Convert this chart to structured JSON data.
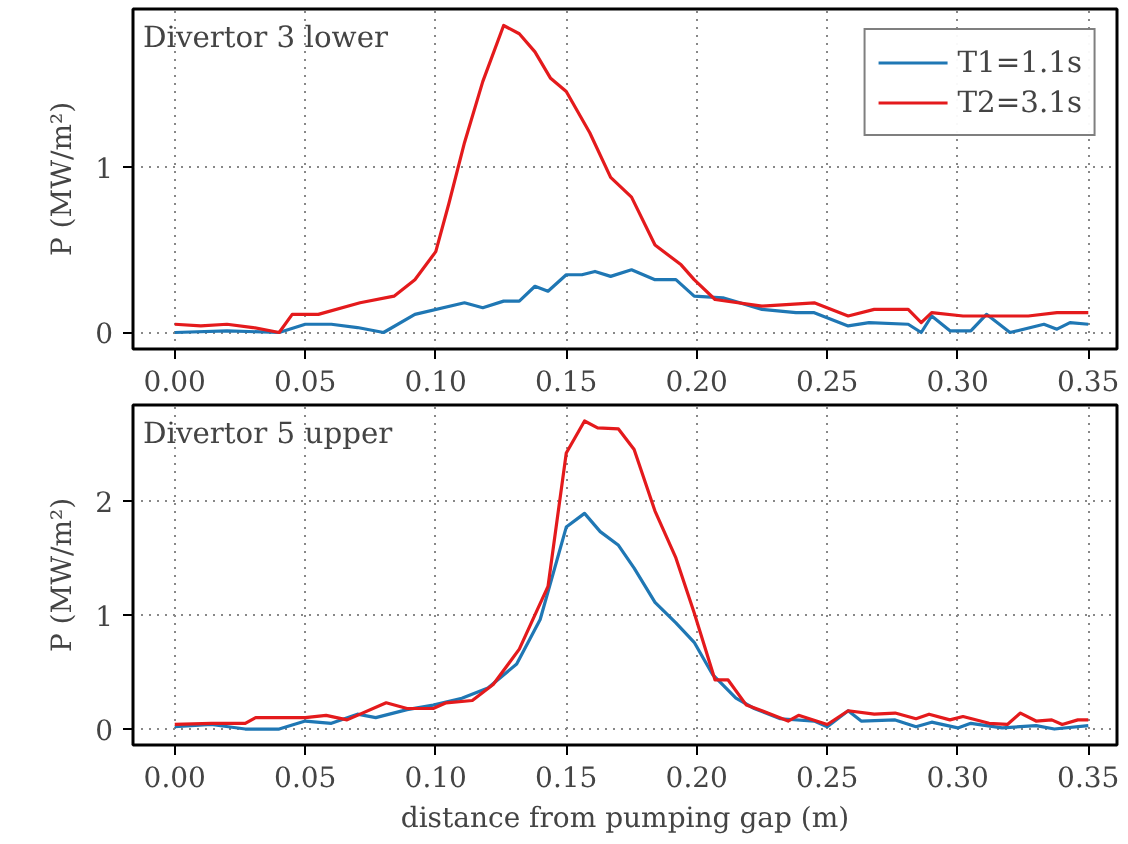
{
  "chart_data": [
    {
      "type": "line",
      "annotations": [
        "Divertor 3 lower"
      ],
      "ylabel": "P (MW/m²)",
      "xlim": [
        -0.016,
        0.361
      ],
      "ylim": [
        -0.1,
        1.96
      ],
      "xticks": [
        {
          "value": 0,
          "label": "0.00"
        },
        0.05,
        {
          "value": 0.1,
          "label": "0.10"
        },
        0.15,
        {
          "value": 0.2,
          "label": "0.20"
        },
        0.25,
        {
          "value": 0.3,
          "label": "0.30"
        },
        0.35
      ],
      "yticks": [
        0,
        1
      ],
      "grid": true,
      "legend": "top right",
      "line_style": "solid",
      "series": [
        {
          "name": "T1=1.1s",
          "color": "#1f77b4",
          "x": [
            0,
            0.02,
            0.04,
            0.05,
            0.06,
            0.07,
            0.08,
            0.092,
            0.111,
            0.118,
            0.126,
            0.132,
            0.138,
            0.143,
            0.15,
            0.156,
            0.161,
            0.167,
            0.175,
            0.184,
            0.192,
            0.199,
            0.21,
            0.225,
            0.238,
            0.245,
            0.258,
            0.266,
            0.281,
            0.286,
            0.29,
            0.297,
            0.305,
            0.311,
            0.32,
            0.333,
            0.338,
            0.343,
            0.35
          ],
          "values": [
            0.0,
            0.01,
            0.0,
            0.05,
            0.05,
            0.03,
            0.0,
            0.11,
            0.18,
            0.15,
            0.19,
            0.19,
            0.28,
            0.25,
            0.35,
            0.35,
            0.37,
            0.34,
            0.38,
            0.32,
            0.32,
            0.22,
            0.21,
            0.14,
            0.12,
            0.12,
            0.04,
            0.06,
            0.05,
            0.0,
            0.1,
            0.01,
            0.01,
            0.11,
            0.0,
            0.05,
            0.02,
            0.06,
            0.05
          ]
        },
        {
          "name": "T2=3.1s",
          "color": "#e41a1c",
          "x": [
            0,
            0.01,
            0.02,
            0.03,
            0.04,
            0.045,
            0.055,
            0.071,
            0.084,
            0.092,
            0.1,
            0.105,
            0.111,
            0.118,
            0.126,
            0.132,
            0.138,
            0.144,
            0.15,
            0.159,
            0.167,
            0.175,
            0.184,
            0.194,
            0.199,
            0.207,
            0.225,
            0.245,
            0.258,
            0.268,
            0.281,
            0.286,
            0.29,
            0.302,
            0.327,
            0.338,
            0.35
          ],
          "values": [
            0.05,
            0.04,
            0.05,
            0.03,
            0.0,
            0.11,
            0.11,
            0.18,
            0.22,
            0.32,
            0.49,
            0.78,
            1.15,
            1.52,
            1.86,
            1.81,
            1.7,
            1.54,
            1.46,
            1.21,
            0.94,
            0.82,
            0.53,
            0.41,
            0.32,
            0.2,
            0.16,
            0.18,
            0.1,
            0.14,
            0.14,
            0.06,
            0.12,
            0.1,
            0.1,
            0.12,
            0.12
          ]
        }
      ]
    },
    {
      "type": "line",
      "annotations": [
        "Divertor 5 upper"
      ],
      "ylabel": "P (MW/m²)",
      "xlabel": "distance from pumping gap (m)",
      "xlim": [
        -0.016,
        0.361
      ],
      "ylim": [
        -0.14,
        2.84
      ],
      "xticks": [
        {
          "value": 0,
          "label": "0.00"
        },
        0.05,
        {
          "value": 0.1,
          "label": "0.10"
        },
        0.15,
        {
          "value": 0.2,
          "label": "0.20"
        },
        0.25,
        {
          "value": 0.3,
          "label": "0.30"
        },
        0.35
      ],
      "yticks": [
        0,
        1,
        2
      ],
      "grid": true,
      "line_style": "solid",
      "series": [
        {
          "color": "#1f77b4",
          "x": [
            0,
            0.014,
            0.027,
            0.04,
            0.05,
            0.06,
            0.07,
            0.077,
            0.089,
            0.099,
            0.11,
            0.12,
            0.131,
            0.14,
            0.15,
            0.157,
            0.163,
            0.17,
            0.176,
            0.184,
            0.192,
            0.199,
            0.206,
            0.215,
            0.222,
            0.232,
            0.245,
            0.25,
            0.258,
            0.263,
            0.276,
            0.284,
            0.29,
            0.3,
            0.305,
            0.317,
            0.33,
            0.337,
            0.35
          ],
          "values": [
            0.02,
            0.04,
            0.0,
            0.0,
            0.07,
            0.05,
            0.13,
            0.1,
            0.17,
            0.21,
            0.27,
            0.36,
            0.57,
            0.96,
            1.77,
            1.89,
            1.73,
            1.61,
            1.41,
            1.11,
            0.93,
            0.76,
            0.48,
            0.27,
            0.18,
            0.09,
            0.07,
            0.02,
            0.16,
            0.07,
            0.08,
            0.02,
            0.06,
            0.01,
            0.05,
            0.01,
            0.03,
            0.0,
            0.03
          ]
        },
        {
          "color": "#e41a1c",
          "x": [
            0,
            0.014,
            0.027,
            0.031,
            0.05,
            0.058,
            0.066,
            0.081,
            0.089,
            0.099,
            0.104,
            0.114,
            0.122,
            0.132,
            0.143,
            0.15,
            0.157,
            0.162,
            0.17,
            0.176,
            0.184,
            0.192,
            0.199,
            0.207,
            0.212,
            0.219,
            0.225,
            0.235,
            0.239,
            0.25,
            0.258,
            0.268,
            0.276,
            0.284,
            0.289,
            0.297,
            0.302,
            0.312,
            0.319,
            0.324,
            0.33,
            0.336,
            0.34,
            0.346,
            0.35
          ],
          "values": [
            0.04,
            0.05,
            0.05,
            0.1,
            0.1,
            0.12,
            0.08,
            0.23,
            0.18,
            0.18,
            0.23,
            0.25,
            0.39,
            0.7,
            1.25,
            2.42,
            2.7,
            2.64,
            2.63,
            2.45,
            1.91,
            1.5,
            1.02,
            0.43,
            0.43,
            0.21,
            0.16,
            0.07,
            0.12,
            0.04,
            0.16,
            0.13,
            0.14,
            0.09,
            0.13,
            0.08,
            0.11,
            0.05,
            0.04,
            0.14,
            0.07,
            0.08,
            0.04,
            0.08,
            0.08
          ]
        }
      ]
    }
  ]
}
